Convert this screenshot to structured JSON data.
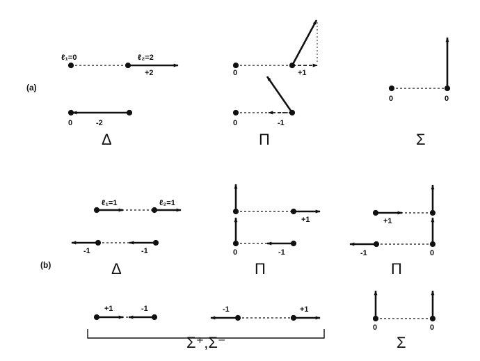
{
  "panel_labels": {
    "a": "(a)",
    "b": "(b)"
  },
  "symbols": {
    "delta": "Δ",
    "pi": "Π",
    "sigma": "Σ",
    "sigma_pair": "Σ⁺,Σ⁻"
  },
  "labels": {
    "l1_eq_0": "ℓ₁=0",
    "l2_eq_2": "ℓ₂=2",
    "l1_eq_1": "ℓ₁=1",
    "l2_eq_1": "ℓ₂=1",
    "plus2": "+2",
    "minus2": "-2",
    "plus1": "+1",
    "minus1": "-1",
    "zero": "0"
  },
  "colors": {
    "ink": "#111111",
    "background": "#ffffff"
  }
}
